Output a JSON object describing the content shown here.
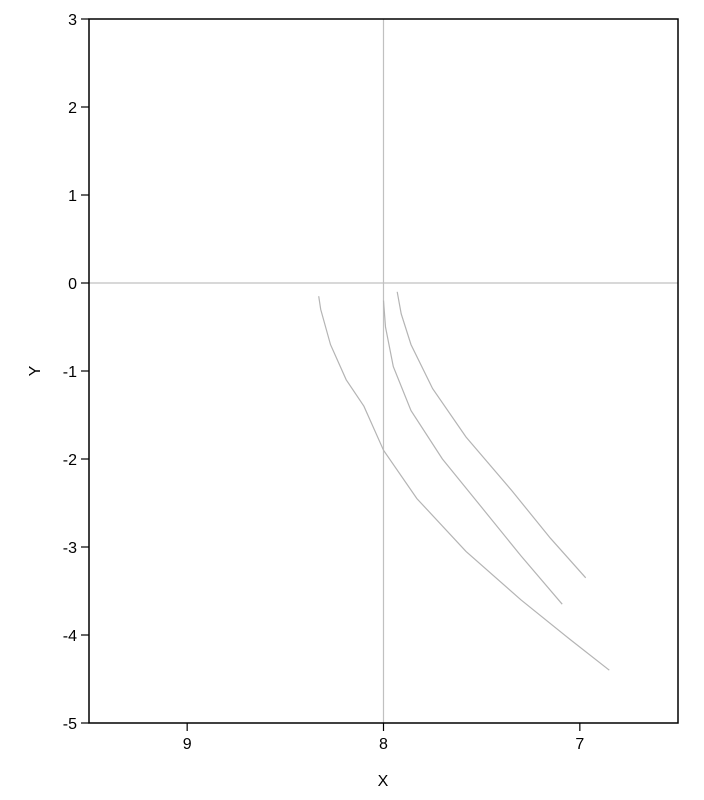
{
  "chart_data": {
    "type": "line",
    "title": "",
    "xlabel": "X",
    "ylabel": "Y",
    "xlim": [
      9.5,
      6.5
    ],
    "ylim": [
      -5,
      3
    ],
    "x_reversed": true,
    "x_ticks": [
      9,
      8,
      7
    ],
    "y_ticks": [
      3,
      2,
      1,
      0,
      -1,
      -2,
      -3,
      -4,
      -5
    ],
    "x_tick_labels": [
      "9",
      "8",
      "7"
    ],
    "y_tick_labels": [
      "3",
      "2",
      "1",
      "0",
      "-1",
      "-2",
      "-3",
      "-4",
      "-5"
    ],
    "reference_lines": {
      "x": 8,
      "y": 0,
      "color": "#c0c0c0"
    },
    "colors": {
      "recent": "#ffff44",
      "middle": "#ff9999",
      "old": "#b4b4b4",
      "arrow": "#000000"
    },
    "trajectories": [
      {
        "points": [
          [
            6.97,
            -3.35
          ],
          [
            7.15,
            -2.9
          ],
          [
            7.35,
            -2.35
          ],
          [
            7.58,
            -1.75
          ],
          [
            7.75,
            -1.2
          ],
          [
            7.86,
            -0.7
          ],
          [
            7.91,
            -0.35
          ],
          [
            7.93,
            -0.1
          ]
        ],
        "middle": [
          [
            7.86,
            -0.7
          ],
          [
            7.93,
            -0.1
          ]
        ],
        "old": [
          [
            6.97,
            -3.35
          ],
          [
            7.86,
            -0.7
          ]
        ]
      },
      {
        "points": [
          [
            7.09,
            -3.65
          ],
          [
            7.3,
            -3.1
          ],
          [
            7.5,
            -2.55
          ],
          [
            7.7,
            -2.0
          ],
          [
            7.86,
            -1.45
          ],
          [
            7.95,
            -0.95
          ],
          [
            7.99,
            -0.5
          ],
          [
            8.0,
            -0.2
          ]
        ],
        "middle": [
          [
            7.95,
            -0.95
          ],
          [
            8.0,
            -0.2
          ]
        ],
        "old": [
          [
            7.09,
            -3.65
          ],
          [
            7.95,
            -0.95
          ]
        ]
      },
      {
        "points": [
          [
            6.85,
            -4.4
          ],
          [
            7.05,
            -4.05
          ],
          [
            7.3,
            -3.6
          ],
          [
            7.58,
            -3.05
          ],
          [
            7.83,
            -2.45
          ],
          [
            8.0,
            -1.9
          ],
          [
            8.1,
            -1.4
          ],
          [
            8.19,
            -1.1
          ],
          [
            8.27,
            -0.7
          ],
          [
            8.32,
            -0.3
          ],
          [
            8.33,
            -0.15
          ]
        ],
        "yellow": [
          [
            8.27,
            -0.7
          ],
          [
            8.33,
            -0.15
          ]
        ],
        "middle": [
          [
            8.1,
            -1.4
          ],
          [
            8.27,
            -0.7
          ]
        ],
        "old": [
          [
            6.85,
            -4.4
          ],
          [
            8.1,
            -1.4
          ]
        ]
      }
    ]
  }
}
